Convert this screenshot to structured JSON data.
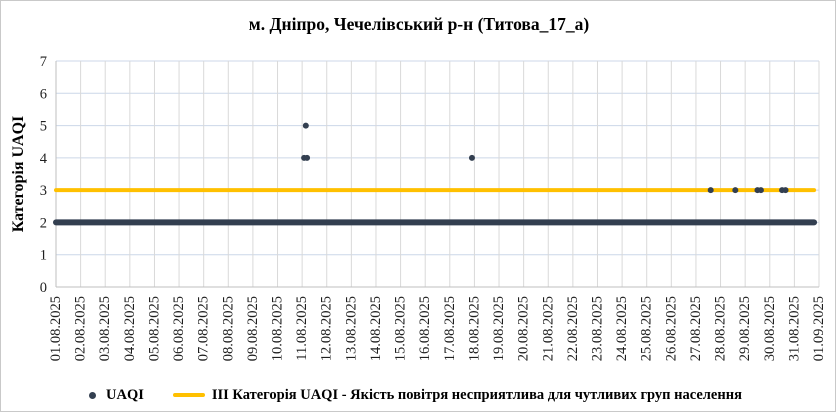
{
  "title": "м. Дніпро, Чечелівський р-н (Титова_17_а)",
  "legend": {
    "uaqi_label": "UAQI",
    "threshold_label": "ІІІ Категорія UAQI - Якість повітря несприятлива для чутливих груп населення"
  },
  "colors": {
    "points": "#333F50",
    "threshold": "#FFC000",
    "grid_v": "#D9D9D9",
    "grid_h": "#CCD7E8",
    "axis": "#BFBFBF",
    "tick_text": "#1f1f1f"
  },
  "chart_data": {
    "type": "scatter",
    "title": "м. Дніпро, Чечелівський р-н (Титова_17_а)",
    "xlabel": "",
    "ylabel": "Категорія UAQI",
    "ylim": [
      0,
      7
    ],
    "y_ticks": [
      0,
      1,
      2,
      3,
      4,
      5,
      6,
      7
    ],
    "x_tick_labels": [
      "01.08.2025",
      "02.08.2025",
      "03.08.2025",
      "04.08.2025",
      "05.08.2025",
      "06.08.2025",
      "07.08.2025",
      "08.08.2025",
      "09.08.2025",
      "10.08.2025",
      "11.08.2025",
      "12.08.2025",
      "13.08.2025",
      "14.08.2025",
      "15.08.2025",
      "16.08.2025",
      "17.08.2025",
      "18.08.2025",
      "19.08.2025",
      "20.08.2025",
      "21.08.2025",
      "22.08.2025",
      "23.08.2025",
      "24.08.2025",
      "25.08.2025",
      "26.08.2025",
      "27.08.2025",
      "28.08.2025",
      "29.08.2025",
      "30.08.2025",
      "31.08.2025",
      "01.09.2025"
    ],
    "grid": true,
    "legend_position": "bottom",
    "series": [
      {
        "name": "UAQI",
        "marker_color": "#333F50",
        "baseline_run": {
          "category": 2,
          "from_day": 1.0,
          "to_day": 31.8,
          "description": "Continuous hourly UAQI readings at category 2 across the whole month, forming a solid line"
        },
        "elevated_points": [
          {
            "day": 11.15,
            "category": 5
          },
          {
            "day": 11.08,
            "category": 4
          },
          {
            "day": 11.2,
            "category": 4
          },
          {
            "day": 17.9,
            "category": 4
          },
          {
            "day": 27.6,
            "category": 3
          },
          {
            "day": 28.6,
            "category": 3
          },
          {
            "day": 29.5,
            "category": 3
          },
          {
            "day": 29.64,
            "category": 3
          },
          {
            "day": 30.5,
            "category": 3
          },
          {
            "day": 30.64,
            "category": 3
          }
        ]
      },
      {
        "name": "ІІІ Категорія UAQI - Якість повітря несприятлива для чутливих груп населення",
        "type": "threshold_line",
        "value": 3,
        "color": "#FFC000",
        "from_day": 1.0,
        "to_day": 31.8
      }
    ]
  }
}
